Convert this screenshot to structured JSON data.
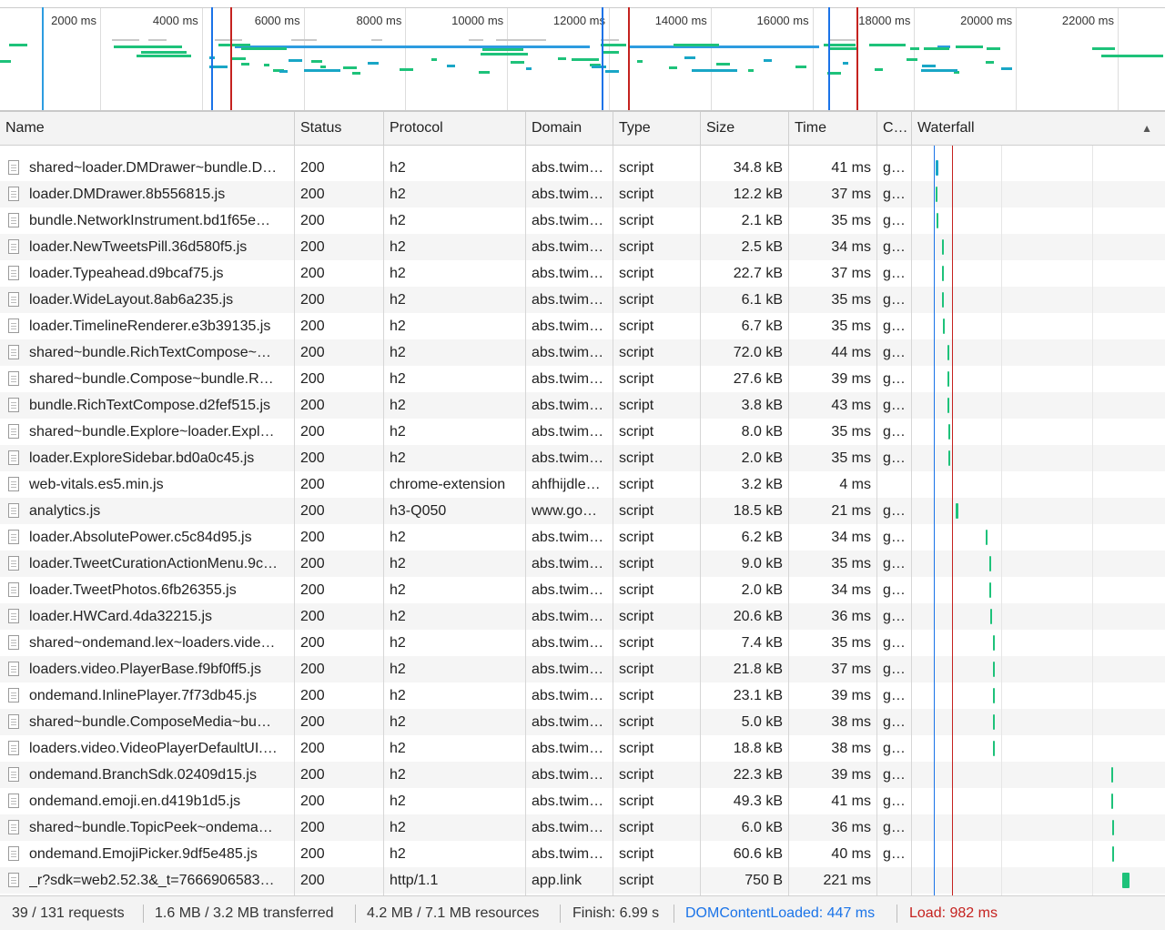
{
  "overview": {
    "ticks": [
      "2000 ms",
      "4000 ms",
      "6000 ms",
      "8000 ms",
      "10000 ms",
      "12000 ms",
      "14000 ms",
      "16000 ms",
      "18000 ms",
      "20000 ms",
      "22000 ms"
    ]
  },
  "columns": {
    "name": "Name",
    "status": "Status",
    "protocol": "Protocol",
    "domain": "Domain",
    "type": "Type",
    "size": "Size",
    "time": "Time",
    "connection": "C…",
    "waterfall": "Waterfall",
    "sort_indicator": "▲"
  },
  "rows": [
    {
      "name": "shared~loader.DMDrawer~bundle.D…",
      "status": "200",
      "protocol": "h2",
      "domain": "abs.twim…",
      "type": "script",
      "size": "34.8 kB",
      "time": "41 ms",
      "conn": "g…"
    },
    {
      "name": "loader.DMDrawer.8b556815.js",
      "status": "200",
      "protocol": "h2",
      "domain": "abs.twim…",
      "type": "script",
      "size": "12.2 kB",
      "time": "37 ms",
      "conn": "g…"
    },
    {
      "name": "bundle.NetworkInstrument.bd1f65e…",
      "status": "200",
      "protocol": "h2",
      "domain": "abs.twim…",
      "type": "script",
      "size": "2.1 kB",
      "time": "35 ms",
      "conn": "g…"
    },
    {
      "name": "loader.NewTweetsPill.36d580f5.js",
      "status": "200",
      "protocol": "h2",
      "domain": "abs.twim…",
      "type": "script",
      "size": "2.5 kB",
      "time": "34 ms",
      "conn": "g…"
    },
    {
      "name": "loader.Typeahead.d9bcaf75.js",
      "status": "200",
      "protocol": "h2",
      "domain": "abs.twim…",
      "type": "script",
      "size": "22.7 kB",
      "time": "37 ms",
      "conn": "g…"
    },
    {
      "name": "loader.WideLayout.8ab6a235.js",
      "status": "200",
      "protocol": "h2",
      "domain": "abs.twim…",
      "type": "script",
      "size": "6.1 kB",
      "time": "35 ms",
      "conn": "g…"
    },
    {
      "name": "loader.TimelineRenderer.e3b39135.js",
      "status": "200",
      "protocol": "h2",
      "domain": "abs.twim…",
      "type": "script",
      "size": "6.7 kB",
      "time": "35 ms",
      "conn": "g…"
    },
    {
      "name": "shared~bundle.RichTextCompose~…",
      "status": "200",
      "protocol": "h2",
      "domain": "abs.twim…",
      "type": "script",
      "size": "72.0 kB",
      "time": "44 ms",
      "conn": "g…"
    },
    {
      "name": "shared~bundle.Compose~bundle.R…",
      "status": "200",
      "protocol": "h2",
      "domain": "abs.twim…",
      "type": "script",
      "size": "27.6 kB",
      "time": "39 ms",
      "conn": "g…"
    },
    {
      "name": "bundle.RichTextCompose.d2fef515.js",
      "status": "200",
      "protocol": "h2",
      "domain": "abs.twim…",
      "type": "script",
      "size": "3.8 kB",
      "time": "43 ms",
      "conn": "g…"
    },
    {
      "name": "shared~bundle.Explore~loader.Expl…",
      "status": "200",
      "protocol": "h2",
      "domain": "abs.twim…",
      "type": "script",
      "size": "8.0 kB",
      "time": "35 ms",
      "conn": "g…"
    },
    {
      "name": "loader.ExploreSidebar.bd0a0c45.js",
      "status": "200",
      "protocol": "h2",
      "domain": "abs.twim…",
      "type": "script",
      "size": "2.0 kB",
      "time": "35 ms",
      "conn": "g…"
    },
    {
      "name": "web-vitals.es5.min.js",
      "status": "200",
      "protocol": "chrome-extension",
      "domain": "ahfhijdle…",
      "type": "script",
      "size": "3.2 kB",
      "time": "4 ms",
      "conn": ""
    },
    {
      "name": "analytics.js",
      "status": "200",
      "protocol": "h3-Q050",
      "domain": "www.go…",
      "type": "script",
      "size": "18.5 kB",
      "time": "21 ms",
      "conn": "g…"
    },
    {
      "name": "loader.AbsolutePower.c5c84d95.js",
      "status": "200",
      "protocol": "h2",
      "domain": "abs.twim…",
      "type": "script",
      "size": "6.2 kB",
      "time": "34 ms",
      "conn": "g…"
    },
    {
      "name": "loader.TweetCurationActionMenu.9c…",
      "status": "200",
      "protocol": "h2",
      "domain": "abs.twim…",
      "type": "script",
      "size": "9.0 kB",
      "time": "35 ms",
      "conn": "g…"
    },
    {
      "name": "loader.TweetPhotos.6fb26355.js",
      "status": "200",
      "protocol": "h2",
      "domain": "abs.twim…",
      "type": "script",
      "size": "2.0 kB",
      "time": "34 ms",
      "conn": "g…"
    },
    {
      "name": "loader.HWCard.4da32215.js",
      "status": "200",
      "protocol": "h2",
      "domain": "abs.twim…",
      "type": "script",
      "size": "20.6 kB",
      "time": "36 ms",
      "conn": "g…"
    },
    {
      "name": "shared~ondemand.lex~loaders.vide…",
      "status": "200",
      "protocol": "h2",
      "domain": "abs.twim…",
      "type": "script",
      "size": "7.4 kB",
      "time": "35 ms",
      "conn": "g…"
    },
    {
      "name": "loaders.video.PlayerBase.f9bf0ff5.js",
      "status": "200",
      "protocol": "h2",
      "domain": "abs.twim…",
      "type": "script",
      "size": "21.8 kB",
      "time": "37 ms",
      "conn": "g…"
    },
    {
      "name": "ondemand.InlinePlayer.7f73db45.js",
      "status": "200",
      "protocol": "h2",
      "domain": "abs.twim…",
      "type": "script",
      "size": "23.1 kB",
      "time": "39 ms",
      "conn": "g…"
    },
    {
      "name": "shared~bundle.ComposeMedia~bu…",
      "status": "200",
      "protocol": "h2",
      "domain": "abs.twim…",
      "type": "script",
      "size": "5.0 kB",
      "time": "38 ms",
      "conn": "g…"
    },
    {
      "name": "loaders.video.VideoPlayerDefaultUI.…",
      "status": "200",
      "protocol": "h2",
      "domain": "abs.twim…",
      "type": "script",
      "size": "18.8 kB",
      "time": "38 ms",
      "conn": "g…"
    },
    {
      "name": "ondemand.BranchSdk.02409d15.js",
      "status": "200",
      "protocol": "h2",
      "domain": "abs.twim…",
      "type": "script",
      "size": "22.3 kB",
      "time": "39 ms",
      "conn": "g…"
    },
    {
      "name": "ondemand.emoji.en.d419b1d5.js",
      "status": "200",
      "protocol": "h2",
      "domain": "abs.twim…",
      "type": "script",
      "size": "49.3 kB",
      "time": "41 ms",
      "conn": "g…"
    },
    {
      "name": "shared~bundle.TopicPeek~ondema…",
      "status": "200",
      "protocol": "h2",
      "domain": "abs.twim…",
      "type": "script",
      "size": "6.0 kB",
      "time": "36 ms",
      "conn": "g…"
    },
    {
      "name": "ondemand.EmojiPicker.9df5e485.js",
      "status": "200",
      "protocol": "h2",
      "domain": "abs.twim…",
      "type": "script",
      "size": "60.6 kB",
      "time": "40 ms",
      "conn": "g…"
    },
    {
      "name": "_r?sdk=web2.52.3&_t=7666906583…",
      "status": "200",
      "protocol": "http/1.1",
      "domain": "app.link",
      "type": "script",
      "size": "750 B",
      "time": "221 ms",
      "conn": ""
    }
  ],
  "footer": {
    "requests": "39 / 131 requests",
    "transferred": "1.6 MB / 3.2 MB transferred",
    "resources": "4.2 MB / 7.1 MB resources",
    "finish": "Finish: 6.99 s",
    "dom_content_loaded": "DOMContentLoaded: 447 ms",
    "load": "Load: 982 ms"
  },
  "colors": {
    "dom_content_loaded": "#1a73e8",
    "load": "#c5221f",
    "bar_green": "#1ec27a",
    "bar_teal": "#19a6c6",
    "bar_blue": "#2d9ce0"
  }
}
